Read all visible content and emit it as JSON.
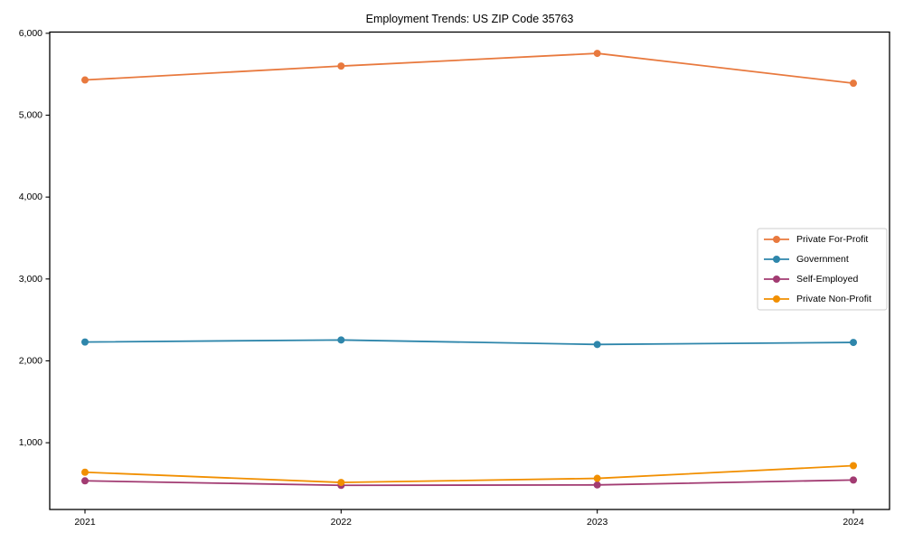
{
  "title": "Employment Trends: US ZIP Code 35763",
  "chart_data": {
    "type": "line",
    "title": "Employment Trends: US ZIP Code 35763",
    "xlabel": "",
    "ylabel": "",
    "categories": [
      "2021",
      "2022",
      "2023",
      "2024"
    ],
    "series": [
      {
        "name": "Private For-Profit",
        "color": "#E8793E",
        "values": [
          5430,
          5600,
          5755,
          5390
        ]
      },
      {
        "name": "Government",
        "color": "#2E86AB",
        "values": [
          2230,
          2255,
          2200,
          2225
        ]
      },
      {
        "name": "Self-Employed",
        "color": "#A23B72",
        "values": [
          535,
          480,
          485,
          545
        ]
      },
      {
        "name": "Private Non-Profit",
        "color": "#F18F01",
        "values": [
          640,
          515,
          565,
          720
        ]
      }
    ],
    "ylim": [
      185,
      6015
    ],
    "yticks": [
      1000,
      2000,
      3000,
      4000,
      5000,
      6000
    ],
    "ytick_labels": [
      "1,000",
      "2,000",
      "3,000",
      "4,000",
      "5,000",
      "6,000"
    ],
    "grid": false,
    "legend_position": "center-right",
    "marker": "circle",
    "axis_color": "#000000",
    "legend_border_color": "#cccccc",
    "legend_background": "#ffffff"
  }
}
